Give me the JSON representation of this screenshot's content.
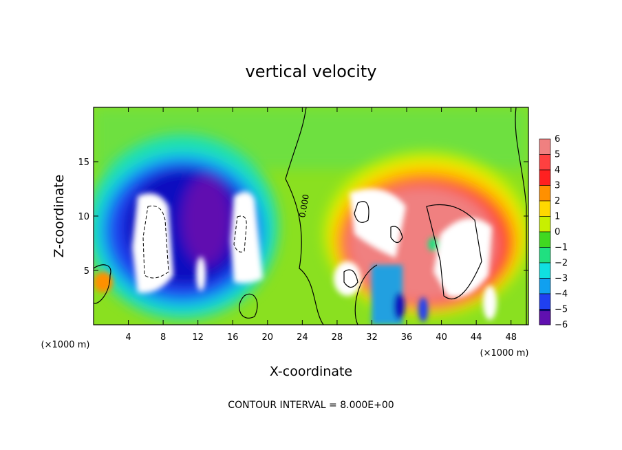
{
  "chart_data": {
    "type": "heatmap",
    "title": "vertical velocity",
    "xlabel": "X-coordinate",
    "ylabel": "Z-coordinate",
    "x_unit_left": "(×1000 m)",
    "x_unit_right": "(×1000 m)",
    "note": "CONTOUR INTERVAL = 8.000E+00",
    "contour_label": "0.000",
    "xlim": [
      0,
      50
    ],
    "ylim": [
      0,
      20
    ],
    "x_ticks": [
      4,
      8,
      12,
      16,
      20,
      24,
      28,
      32,
      36,
      40,
      44,
      48
    ],
    "y_ticks": [
      5,
      10,
      15
    ],
    "colorbar": {
      "levels": [
        6,
        5,
        4,
        3,
        2,
        1,
        0,
        -1,
        -2,
        -3,
        -4,
        -5,
        -6
      ],
      "labels": [
        "6",
        "5",
        "4",
        "3",
        "2",
        "1",
        "0",
        "−1",
        "−2",
        "−3",
        "−4",
        "−5",
        "−6"
      ],
      "colors": [
        "#f08080",
        "#ff4040",
        "#ff2020",
        "#ff9000",
        "#ffd800",
        "#c8f000",
        "#40d820",
        "#20e080",
        "#10e0e0",
        "#10a0f0",
        "#2040f0",
        "#1010c0",
        "#6010b0"
      ],
      "saturated_color": "#ffffff"
    },
    "regions": [
      {
        "name": "updraft-right",
        "x": [
          27,
          49
        ],
        "z": [
          1,
          17
        ],
        "w_sign": "positive",
        "w_max": "> 6"
      },
      {
        "name": "downdraft-left",
        "x": [
          3,
          22
        ],
        "z": [
          1,
          17
        ],
        "w_sign": "negative",
        "w_min": "< -6"
      }
    ],
    "grid": false,
    "legend": "right"
  }
}
